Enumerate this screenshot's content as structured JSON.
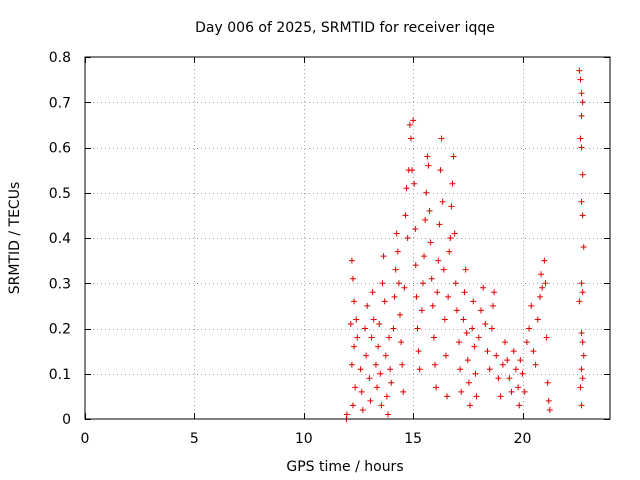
{
  "chart_data": {
    "type": "scatter",
    "title": "Day 006 of 2025, SRMTID for receiver iqqe",
    "xlabel": "GPS time / hours",
    "ylabel": "SRMTID / TECUs",
    "xlim": [
      0,
      24
    ],
    "ylim": [
      0,
      0.8
    ],
    "xticks": [
      0,
      5,
      10,
      15,
      20
    ],
    "yticks": [
      0,
      0.1,
      0.2,
      0.3,
      0.4,
      0.5,
      0.6,
      0.7,
      0.8
    ],
    "xtick_labels": [
      "0",
      "5",
      "10",
      "15",
      "20"
    ],
    "ytick_labels": [
      "0",
      "0.1",
      "0.2",
      "0.3",
      "0.4",
      "0.5",
      "0.6",
      "0.7",
      "0.8"
    ],
    "grid": true,
    "marker": "+",
    "series": [
      {
        "name": "SRMTID",
        "color": "#e00000",
        "points": [
          [
            11.95,
            0.0
          ],
          [
            11.97,
            0.01
          ],
          [
            12.2,
            0.35
          ],
          [
            12.25,
            0.31
          ],
          [
            12.3,
            0.26
          ],
          [
            12.15,
            0.21
          ],
          [
            12.3,
            0.16
          ],
          [
            12.2,
            0.12
          ],
          [
            12.35,
            0.07
          ],
          [
            12.25,
            0.03
          ],
          [
            12.4,
            0.22
          ],
          [
            12.45,
            0.18
          ],
          [
            12.6,
            0.11
          ],
          [
            12.65,
            0.06
          ],
          [
            12.7,
            0.02
          ],
          [
            12.8,
            0.2
          ],
          [
            12.85,
            0.14
          ],
          [
            12.9,
            0.25
          ],
          [
            13.0,
            0.09
          ],
          [
            13.05,
            0.04
          ],
          [
            13.1,
            0.18
          ],
          [
            13.15,
            0.28
          ],
          [
            13.2,
            0.22
          ],
          [
            13.3,
            0.12
          ],
          [
            13.35,
            0.07
          ],
          [
            13.4,
            0.16
          ],
          [
            13.45,
            0.21
          ],
          [
            13.5,
            0.1
          ],
          [
            13.55,
            0.03
          ],
          [
            13.6,
            0.3
          ],
          [
            13.65,
            0.36
          ],
          [
            13.7,
            0.26
          ],
          [
            13.75,
            0.14
          ],
          [
            13.8,
            0.05
          ],
          [
            13.85,
            0.01
          ],
          [
            13.9,
            0.18
          ],
          [
            13.95,
            0.11
          ],
          [
            14.0,
            0.08
          ],
          [
            14.1,
            0.2
          ],
          [
            14.15,
            0.27
          ],
          [
            14.2,
            0.33
          ],
          [
            14.25,
            0.41
          ],
          [
            14.3,
            0.37
          ],
          [
            14.35,
            0.3
          ],
          [
            14.4,
            0.23
          ],
          [
            14.45,
            0.17
          ],
          [
            14.5,
            0.12
          ],
          [
            14.55,
            0.06
          ],
          [
            14.6,
            0.29
          ],
          [
            14.65,
            0.45
          ],
          [
            14.7,
            0.51
          ],
          [
            14.75,
            0.4
          ],
          [
            14.8,
            0.55
          ],
          [
            14.85,
            0.65
          ],
          [
            14.9,
            0.62
          ],
          [
            14.95,
            0.55
          ],
          [
            15.0,
            0.66
          ],
          [
            15.05,
            0.52
          ],
          [
            15.1,
            0.42
          ],
          [
            15.12,
            0.34
          ],
          [
            15.15,
            0.27
          ],
          [
            15.2,
            0.2
          ],
          [
            15.25,
            0.15
          ],
          [
            15.3,
            0.11
          ],
          [
            15.4,
            0.24
          ],
          [
            15.45,
            0.3
          ],
          [
            15.5,
            0.36
          ],
          [
            15.55,
            0.44
          ],
          [
            15.6,
            0.5
          ],
          [
            15.65,
            0.58
          ],
          [
            15.7,
            0.56
          ],
          [
            15.75,
            0.46
          ],
          [
            15.8,
            0.39
          ],
          [
            15.85,
            0.31
          ],
          [
            15.9,
            0.25
          ],
          [
            15.95,
            0.18
          ],
          [
            16.0,
            0.12
          ],
          [
            16.05,
            0.07
          ],
          [
            16.1,
            0.28
          ],
          [
            16.15,
            0.35
          ],
          [
            16.2,
            0.43
          ],
          [
            16.25,
            0.55
          ],
          [
            16.3,
            0.62
          ],
          [
            16.35,
            0.48
          ],
          [
            16.4,
            0.33
          ],
          [
            16.45,
            0.22
          ],
          [
            16.5,
            0.14
          ],
          [
            16.55,
            0.05
          ],
          [
            16.6,
            0.27
          ],
          [
            16.65,
            0.37
          ],
          [
            16.7,
            0.4
          ],
          [
            16.75,
            0.47
          ],
          [
            16.8,
            0.52
          ],
          [
            16.85,
            0.58
          ],
          [
            16.9,
            0.41
          ],
          [
            16.95,
            0.3
          ],
          [
            17.0,
            0.24
          ],
          [
            17.1,
            0.17
          ],
          [
            17.15,
            0.11
          ],
          [
            17.2,
            0.06
          ],
          [
            17.3,
            0.22
          ],
          [
            17.35,
            0.28
          ],
          [
            17.4,
            0.33
          ],
          [
            17.45,
            0.19
          ],
          [
            17.5,
            0.13
          ],
          [
            17.55,
            0.08
          ],
          [
            17.6,
            0.03
          ],
          [
            17.7,
            0.2
          ],
          [
            17.75,
            0.26
          ],
          [
            17.8,
            0.16
          ],
          [
            17.85,
            0.1
          ],
          [
            17.9,
            0.05
          ],
          [
            18.0,
            0.18
          ],
          [
            18.1,
            0.24
          ],
          [
            18.2,
            0.29
          ],
          [
            18.3,
            0.21
          ],
          [
            18.4,
            0.15
          ],
          [
            18.5,
            0.11
          ],
          [
            18.6,
            0.2
          ],
          [
            18.65,
            0.25
          ],
          [
            18.7,
            0.28
          ],
          [
            18.8,
            0.14
          ],
          [
            18.9,
            0.09
          ],
          [
            19.0,
            0.05
          ],
          [
            19.1,
            0.12
          ],
          [
            19.2,
            0.17
          ],
          [
            19.3,
            0.13
          ],
          [
            19.4,
            0.09
          ],
          [
            19.5,
            0.06
          ],
          [
            19.6,
            0.15
          ],
          [
            19.7,
            0.11
          ],
          [
            19.8,
            0.07
          ],
          [
            19.85,
            0.03
          ],
          [
            19.9,
            0.13
          ],
          [
            20.0,
            0.1
          ],
          [
            20.1,
            0.06
          ],
          [
            20.2,
            0.17
          ],
          [
            20.3,
            0.2
          ],
          [
            20.4,
            0.25
          ],
          [
            20.5,
            0.15
          ],
          [
            20.6,
            0.12
          ],
          [
            20.7,
            0.22
          ],
          [
            20.8,
            0.27
          ],
          [
            20.85,
            0.32
          ],
          [
            20.9,
            0.29
          ],
          [
            21.0,
            0.35
          ],
          [
            21.05,
            0.3
          ],
          [
            21.1,
            0.18
          ],
          [
            21.15,
            0.08
          ],
          [
            21.2,
            0.04
          ],
          [
            21.25,
            0.02
          ],
          [
            22.6,
            0.77
          ],
          [
            22.65,
            0.75
          ],
          [
            22.7,
            0.72
          ],
          [
            22.75,
            0.7
          ],
          [
            22.7,
            0.67
          ],
          [
            22.65,
            0.62
          ],
          [
            22.7,
            0.6
          ],
          [
            22.75,
            0.54
          ],
          [
            22.7,
            0.48
          ],
          [
            22.75,
            0.45
          ],
          [
            22.8,
            0.38
          ],
          [
            22.7,
            0.3
          ],
          [
            22.75,
            0.28
          ],
          [
            22.6,
            0.26
          ],
          [
            22.7,
            0.19
          ],
          [
            22.75,
            0.17
          ],
          [
            22.8,
            0.14
          ],
          [
            22.7,
            0.11
          ],
          [
            22.75,
            0.09
          ],
          [
            22.65,
            0.07
          ],
          [
            22.7,
            0.03
          ]
        ]
      }
    ]
  }
}
